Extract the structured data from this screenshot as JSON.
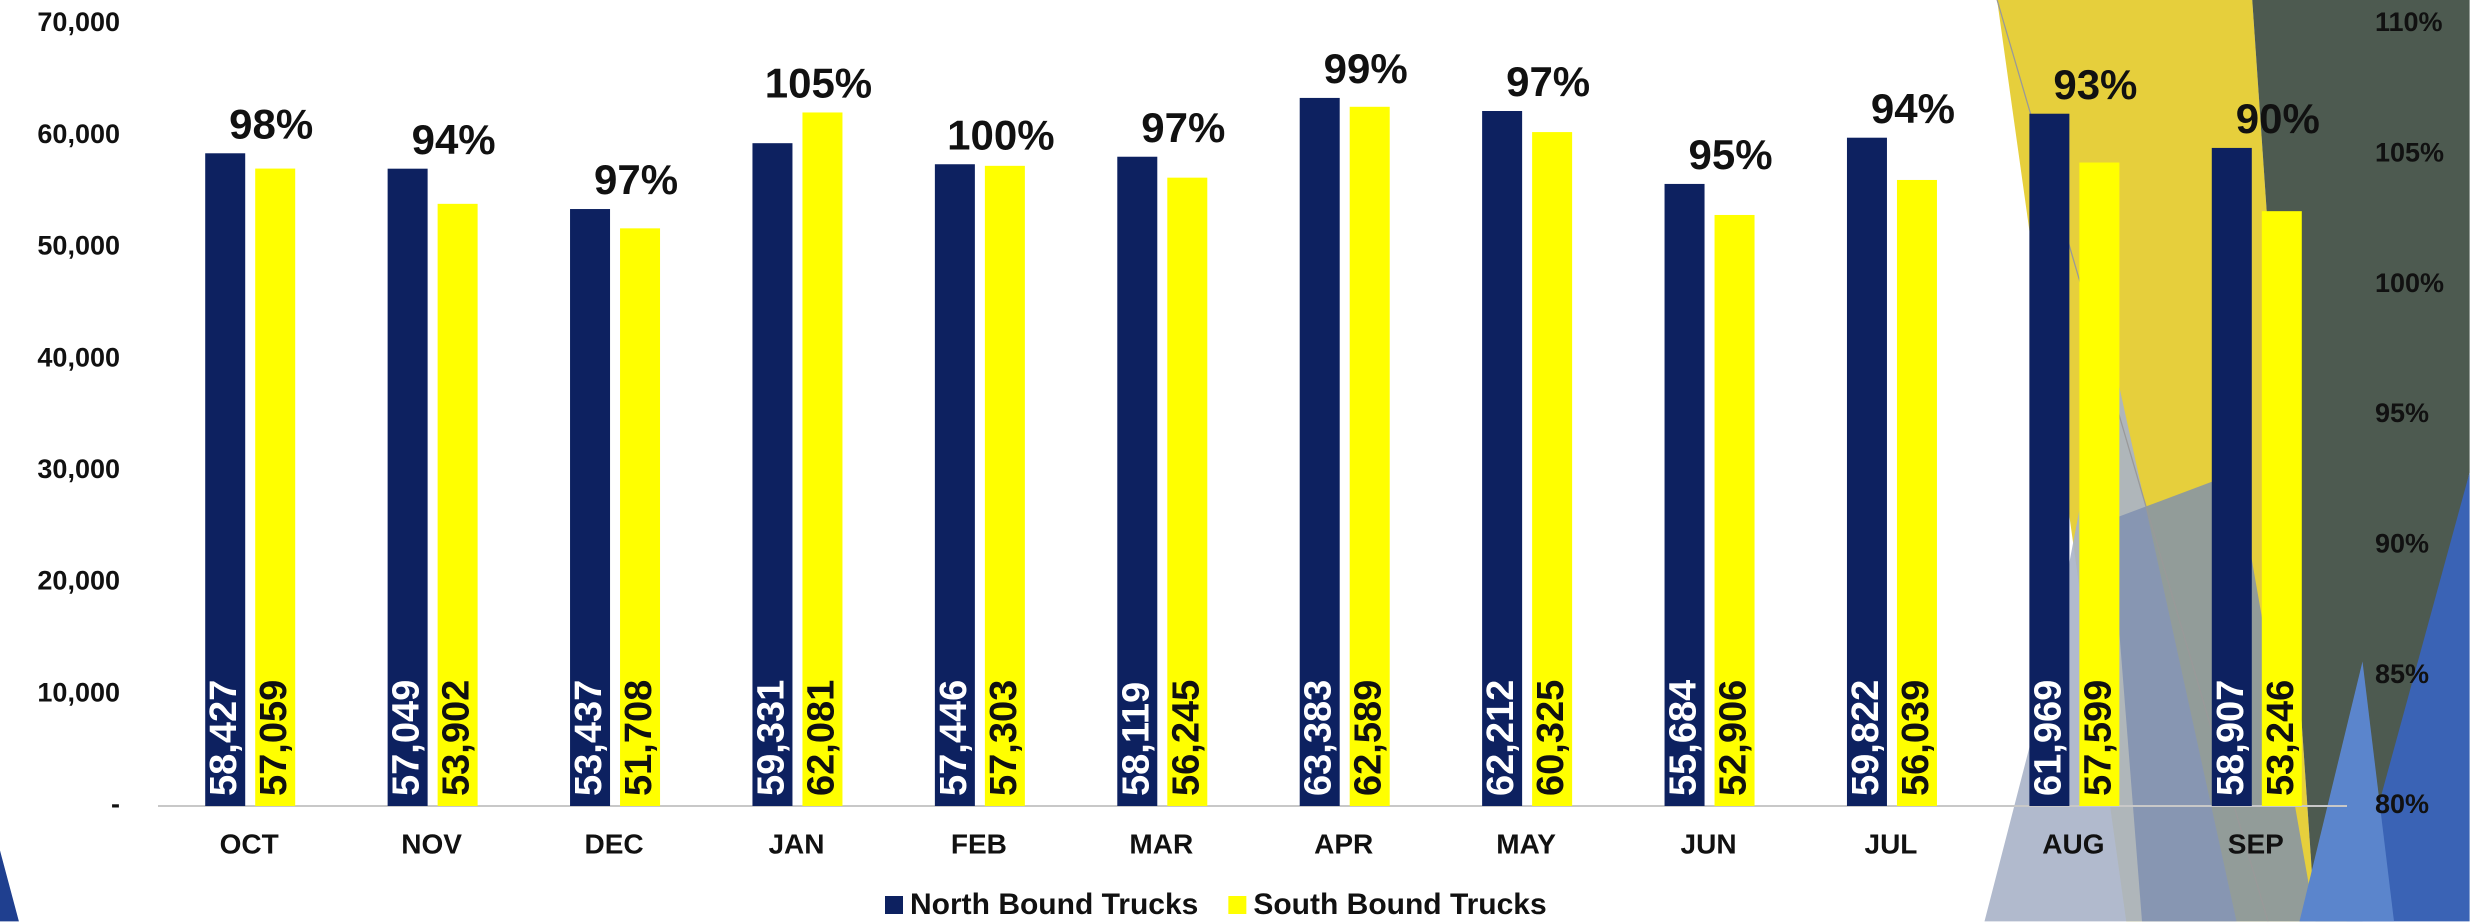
{
  "chart_data": {
    "type": "bar",
    "categories": [
      "OCT",
      "NOV",
      "DEC",
      "JAN",
      "FEB",
      "MAR",
      "APR",
      "MAY",
      "JUN",
      "JUL",
      "AUG",
      "SEP"
    ],
    "series": [
      {
        "name": "North Bound Trucks",
        "color": "#0d2160",
        "values": [
          58427,
          57049,
          53437,
          59331,
          57446,
          58119,
          63383,
          62212,
          55684,
          59822,
          61969,
          58907
        ],
        "value_labels": [
          "58,427",
          "57,049",
          "53,437",
          "59,331",
          "57,446",
          "58,119",
          "63,383",
          "62,212",
          "55,684",
          "59,822",
          "61,969",
          "58,907"
        ]
      },
      {
        "name": "South Bound Trucks",
        "color": "#ffff00",
        "values": [
          57059,
          53902,
          51708,
          62081,
          57303,
          56245,
          62589,
          60325,
          52906,
          56039,
          57599,
          53246
        ],
        "value_labels": [
          "57,059",
          "53,902",
          "51,708",
          "62,081",
          "57,303",
          "56,245",
          "62,589",
          "60,325",
          "52,906",
          "56,039",
          "57,599",
          "53,246"
        ]
      }
    ],
    "ratio": {
      "values": [
        98,
        94,
        97,
        105,
        100,
        97,
        99,
        97,
        95,
        94,
        93,
        90
      ],
      "value_labels": [
        "98%",
        "94%",
        "97%",
        "105%",
        "100%",
        "97%",
        "99%",
        "97%",
        "95%",
        "94%",
        "93%",
        "90%"
      ]
    },
    "ylim": [
      0,
      70000
    ],
    "yticks": [
      {
        "value": 0,
        "label": "-"
      },
      {
        "value": 10000,
        "label": "10,000"
      },
      {
        "value": 20000,
        "label": "20,000"
      },
      {
        "value": 30000,
        "label": "30,000"
      },
      {
        "value": 40000,
        "label": "40,000"
      },
      {
        "value": 50000,
        "label": "50,000"
      },
      {
        "value": 60000,
        "label": "60,000"
      },
      {
        "value": 70000,
        "label": "70,000"
      }
    ],
    "y2lim": [
      80,
      110
    ],
    "y2ticks": [
      {
        "value": 80,
        "label": "80%"
      },
      {
        "value": 85,
        "label": "85%"
      },
      {
        "value": 90,
        "label": "90%"
      },
      {
        "value": 95,
        "label": "95%"
      },
      {
        "value": 100,
        "label": "100%"
      },
      {
        "value": 105,
        "label": "105%"
      },
      {
        "value": 110,
        "label": "110%"
      }
    ],
    "legend": "bottom"
  }
}
